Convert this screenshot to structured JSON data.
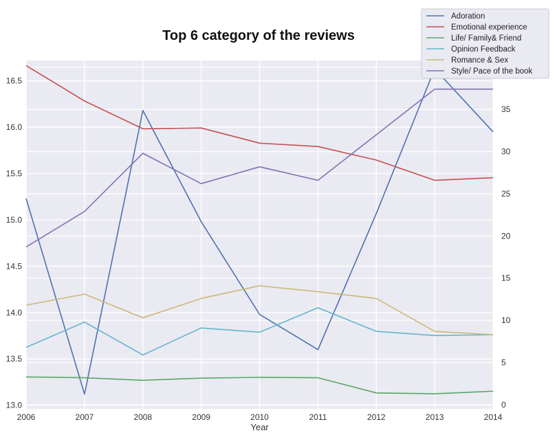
{
  "chart_data": {
    "type": "line",
    "title": "Top 6 category of the reviews",
    "xlabel": "Year",
    "ylabel_left": "",
    "ylabel_right": "",
    "x": [
      2006,
      2007,
      2008,
      2009,
      2010,
      2011,
      2012,
      2013,
      2014
    ],
    "x_ticks": [
      "2006",
      "2007",
      "2008",
      "2009",
      "2010",
      "2011",
      "2012",
      "2013",
      "2014"
    ],
    "left_axis": {
      "range": [
        12.96,
        16.72
      ],
      "ticks": [
        "13.0",
        "13.5",
        "14.0",
        "14.5",
        "15.0",
        "15.5",
        "16.0",
        "16.5"
      ]
    },
    "right_axis": {
      "range": [
        -0.5,
        40.8
      ],
      "ticks": [
        "0",
        "5",
        "10",
        "15",
        "20",
        "25",
        "30",
        "35",
        "40"
      ]
    },
    "grid": true,
    "legend_position": "top-right",
    "background": "#eaeaf2",
    "series": [
      {
        "name": "Adoration",
        "axis": "left",
        "color": "#4c72b0",
        "values": [
          15.23,
          13.12,
          16.18,
          14.98,
          13.98,
          13.6,
          15.07,
          16.63,
          15.95
        ]
      },
      {
        "name": "Emotional experience",
        "axis": "right",
        "color": "#c44e52",
        "values": [
          40.2,
          36.0,
          32.7,
          32.8,
          31.0,
          30.6,
          29.0,
          26.6,
          26.9
        ]
      },
      {
        "name": "Life/ Family& Friend",
        "axis": "right",
        "color": "#55a868",
        "values": [
          3.3,
          3.2,
          2.9,
          3.15,
          3.25,
          3.2,
          1.4,
          1.3,
          1.6
        ]
      },
      {
        "name": "Opinion Feedback",
        "axis": "right",
        "color": "#64b5cd",
        "values": [
          6.8,
          9.8,
          5.9,
          9.1,
          8.6,
          11.5,
          8.7,
          8.2,
          8.3
        ]
      },
      {
        "name": "Romance & Sex",
        "axis": "right",
        "color": "#ccb974",
        "values": [
          11.8,
          13.1,
          10.3,
          12.6,
          14.1,
          13.4,
          12.6,
          8.7,
          8.3
        ]
      },
      {
        "name": "Style/ Pace of the book",
        "axis": "right",
        "color": "#8172b2",
        "values": [
          18.7,
          22.9,
          29.8,
          26.2,
          28.2,
          26.6,
          32.0,
          37.4,
          37.4
        ]
      }
    ]
  }
}
